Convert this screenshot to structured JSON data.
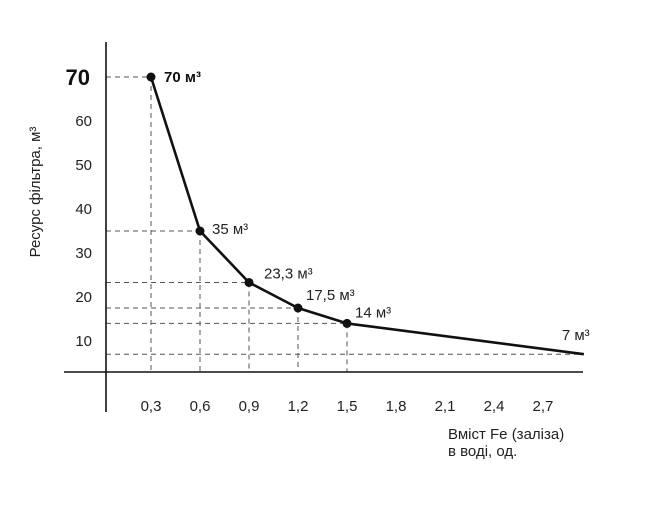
{
  "chart_data": {
    "type": "line",
    "ylabel": "Ресурс фільтра, м³",
    "xlabel_lines": [
      "Вміст Fe (заліза)",
      "в воді, од."
    ],
    "x_ticks": [
      "0,3",
      "0,6",
      "0,9",
      "1,2",
      "1,5",
      "1,8",
      "2,1",
      "2,4",
      "2,7"
    ],
    "x_tick_values": [
      0.3,
      0.6,
      0.9,
      1.2,
      1.5,
      1.8,
      2.1,
      2.4,
      2.7
    ],
    "y_ticks": [
      "10",
      "20",
      "30",
      "40",
      "50",
      "60",
      "70"
    ],
    "y_tick_values": [
      10,
      20,
      30,
      40,
      50,
      60,
      70
    ],
    "xlim": [
      0,
      3.0
    ],
    "ylim": [
      3,
      80
    ],
    "grid": false,
    "series": [
      {
        "x": [
          0.3,
          0.6,
          0.9,
          1.2,
          1.5,
          2.95
        ],
        "y": [
          70,
          35,
          23.3,
          17.5,
          14,
          7
        ]
      }
    ],
    "point_labels": [
      "70 м³",
      "35 м³",
      "23,3 м³",
      "17,5 м³",
      "14 м³",
      "7 м³"
    ],
    "colors": {
      "line": "#111111",
      "guide": "#555555"
    }
  }
}
